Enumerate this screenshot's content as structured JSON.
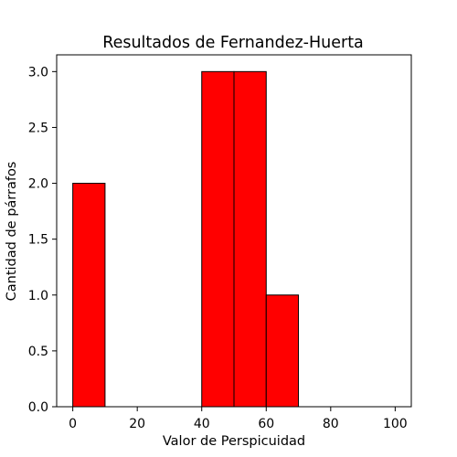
{
  "chart_data": {
    "type": "bar",
    "title": "Resultados de Fernandez-Huerta",
    "xlabel": "Valor de Perspicuidad",
    "ylabel": "Cantidad de párrafos",
    "bins": [
      {
        "x0": 0,
        "x1": 10,
        "value": 2
      },
      {
        "x0": 10,
        "x1": 20,
        "value": 0
      },
      {
        "x0": 20,
        "x1": 30,
        "value": 0
      },
      {
        "x0": 30,
        "x1": 40,
        "value": 0
      },
      {
        "x0": 40,
        "x1": 50,
        "value": 3
      },
      {
        "x0": 50,
        "x1": 60,
        "value": 3
      },
      {
        "x0": 60,
        "x1": 70,
        "value": 1
      },
      {
        "x0": 70,
        "x1": 80,
        "value": 0
      },
      {
        "x0": 80,
        "x1": 90,
        "value": 0
      },
      {
        "x0": 90,
        "x1": 100,
        "value": 0
      }
    ],
    "xlim": [
      -5,
      105
    ],
    "ylim": [
      0,
      3.15
    ],
    "xticks": [
      "0",
      "20",
      "40",
      "60",
      "80",
      "100"
    ],
    "yticks": [
      "0.0",
      "0.5",
      "1.0",
      "1.5",
      "2.0",
      "2.5",
      "3.0"
    ],
    "bar_color": "#ff0000",
    "edge_color": "#000000",
    "grid": false
  }
}
